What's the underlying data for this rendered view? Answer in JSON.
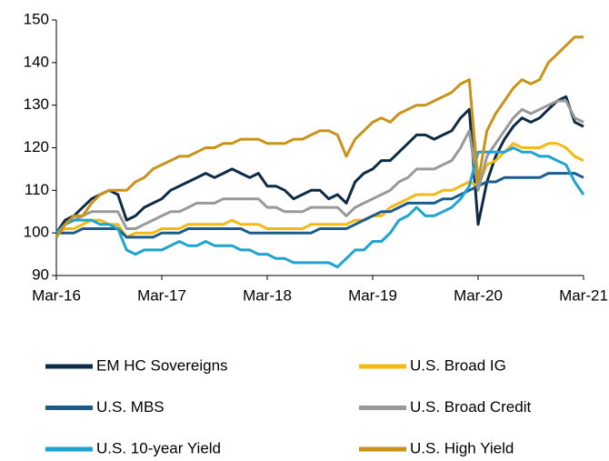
{
  "chart_data": {
    "type": "line",
    "categories": [
      "Mar-16",
      null,
      null,
      null,
      null,
      null,
      null,
      null,
      null,
      null,
      null,
      null,
      "Mar-17",
      null,
      null,
      null,
      null,
      null,
      null,
      null,
      null,
      null,
      null,
      null,
      "Mar-18",
      null,
      null,
      null,
      null,
      null,
      null,
      null,
      null,
      null,
      null,
      null,
      "Mar-19",
      null,
      null,
      null,
      null,
      null,
      null,
      null,
      null,
      null,
      null,
      null,
      "Mar-20",
      null,
      null,
      null,
      null,
      null,
      null,
      null,
      null,
      null,
      null,
      null,
      "Mar-21"
    ],
    "ylim": [
      90,
      150
    ],
    "yticks": [
      90,
      100,
      110,
      120,
      130,
      140,
      150
    ],
    "grid": false,
    "series": [
      {
        "name": "EM HC Sovereigns",
        "color": "#0d2b45",
        "values": [
          100,
          103,
          104,
          106,
          108,
          109,
          110,
          109,
          103,
          104,
          106,
          107,
          108,
          110,
          111,
          112,
          113,
          114,
          113,
          114,
          115,
          114,
          113,
          114,
          111,
          111,
          110,
          108,
          109,
          110,
          110,
          108,
          109,
          107,
          112,
          114,
          115,
          117,
          117,
          119,
          121,
          123,
          123,
          122,
          123,
          124,
          127,
          129,
          102,
          112,
          118,
          122,
          125,
          127,
          126,
          127,
          129,
          131,
          132,
          126,
          125
        ]
      },
      {
        "name": "U.S. Broad IG",
        "color": "#f5b913",
        "values": [
          100,
          101,
          101,
          102,
          103,
          103,
          102,
          102,
          99,
          100,
          100,
          100,
          101,
          101,
          101,
          102,
          102,
          102,
          102,
          102,
          103,
          102,
          102,
          102,
          101,
          101,
          101,
          101,
          101,
          102,
          102,
          102,
          102,
          102,
          103,
          103,
          104,
          104,
          106,
          107,
          108,
          109,
          109,
          109,
          110,
          110,
          111,
          112,
          111,
          116,
          117,
          119,
          121,
          120,
          120,
          120,
          121,
          121,
          120,
          118,
          117
        ]
      },
      {
        "name": "U.S. MBS",
        "color": "#1c5c8c",
        "values": [
          100,
          100,
          100,
          101,
          101,
          101,
          101,
          101,
          99,
          99,
          99,
          99,
          100,
          100,
          100,
          101,
          101,
          101,
          101,
          101,
          101,
          101,
          100,
          100,
          100,
          100,
          100,
          100,
          100,
          100,
          101,
          101,
          101,
          101,
          102,
          103,
          104,
          105,
          105,
          106,
          107,
          107,
          107,
          107,
          108,
          108,
          109,
          110,
          111,
          112,
          112,
          113,
          113,
          113,
          113,
          113,
          114,
          114,
          114,
          114,
          113
        ]
      },
      {
        "name": "U.S. Broad Credit",
        "color": "#999999",
        "values": [
          100,
          102,
          103,
          104,
          105,
          105,
          105,
          105,
          101,
          101,
          102,
          103,
          104,
          105,
          105,
          106,
          107,
          107,
          107,
          108,
          108,
          108,
          108,
          108,
          106,
          106,
          105,
          105,
          105,
          106,
          106,
          106,
          106,
          104,
          106,
          107,
          108,
          109,
          110,
          112,
          113,
          115,
          115,
          115,
          116,
          117,
          120,
          124,
          110,
          118,
          121,
          124,
          127,
          129,
          128,
          129,
          130,
          131,
          131,
          127,
          126
        ]
      },
      {
        "name": "U.S. 10-year Yield",
        "color": "#1fa3d1",
        "values": [
          100,
          102,
          103,
          103,
          103,
          102,
          102,
          101,
          96,
          95,
          96,
          96,
          96,
          97,
          98,
          97,
          97,
          98,
          97,
          97,
          97,
          96,
          96,
          95,
          95,
          94,
          94,
          93,
          93,
          93,
          93,
          93,
          92,
          94,
          96,
          96,
          98,
          98,
          100,
          103,
          104,
          106,
          104,
          104,
          105,
          106,
          108,
          111,
          119,
          119,
          119,
          119,
          120,
          119,
          119,
          118,
          118,
          117,
          116,
          112,
          109
        ]
      },
      {
        "name": "U.S. High Yield",
        "color": "#c9931a",
        "values": [
          99,
          102,
          104,
          104,
          107,
          109,
          110,
          110,
          110,
          112,
          113,
          115,
          116,
          117,
          118,
          118,
          119,
          120,
          120,
          121,
          121,
          122,
          122,
          122,
          121,
          121,
          121,
          122,
          122,
          123,
          124,
          124,
          123,
          118,
          122,
          124,
          126,
          127,
          126,
          128,
          129,
          130,
          130,
          131,
          132,
          133,
          135,
          136,
          112,
          124,
          128,
          131,
          134,
          136,
          135,
          136,
          140,
          142,
          144,
          146,
          146
        ]
      }
    ]
  }
}
